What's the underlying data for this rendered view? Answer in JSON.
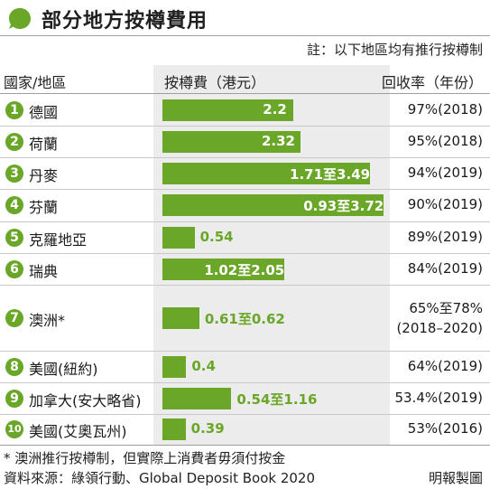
{
  "title": "部分地方按樽費用",
  "note": "註：以下地區均有推行按樽制",
  "headers": {
    "region": "國家/地區",
    "fee": "按樽費（港元）",
    "rate": "回收率（年份）"
  },
  "colors": {
    "bar": "#6aa628",
    "band": "#ececec"
  },
  "footnote": "* 澳洲推行按樽制，但實際上消費者毋須付按金",
  "source": "資料來源：綠領行動、Global Deposit Book 2020",
  "credit": "明報製圖",
  "chart_data": {
    "type": "bar",
    "orientation": "horizontal",
    "title": "部分地方按樽費用",
    "xlabel": "按樽費（港元）",
    "xlim": [
      0,
      3.72
    ],
    "grid": false,
    "rows": [
      {
        "rank": "1",
        "region": "德國",
        "min": 2.2,
        "max": 2.2,
        "label": "2.2",
        "rate": "97%(2018)"
      },
      {
        "rank": "2",
        "region": "荷蘭",
        "min": 2.32,
        "max": 2.32,
        "label": "2.32",
        "rate": "95%(2018)"
      },
      {
        "rank": "3",
        "region": "丹麥",
        "min": 1.71,
        "max": 3.49,
        "label": "1.71至3.49",
        "rate": "94%(2019)"
      },
      {
        "rank": "4",
        "region": "芬蘭",
        "min": 0.93,
        "max": 3.72,
        "label": "0.93至3.72",
        "rate": "90%(2019)"
      },
      {
        "rank": "5",
        "region": "克羅地亞",
        "min": 0.54,
        "max": 0.54,
        "label": "0.54",
        "rate": "89%(2019)"
      },
      {
        "rank": "6",
        "region": "瑞典",
        "min": 1.02,
        "max": 2.05,
        "label": "1.02至2.05",
        "rate": "84%(2019)"
      },
      {
        "rank": "7",
        "region": "澳洲*",
        "min": 0.61,
        "max": 0.62,
        "label": "0.61至0.62",
        "rate": "65%至78%",
        "rate_years": "(2018–2020)"
      },
      {
        "rank": "8",
        "region": "美國(紐約)",
        "min": 0.4,
        "max": 0.4,
        "label": "0.4",
        "rate": "64%(2019)"
      },
      {
        "rank": "9",
        "region": "加拿大(安大略省)",
        "min": 0.54,
        "max": 1.16,
        "label": "0.54至1.16",
        "rate": "53.4%(2019)"
      },
      {
        "rank": "10",
        "region": "美國(艾奧瓦州)",
        "min": 0.39,
        "max": 0.39,
        "label": "0.39",
        "rate": "53%(2016)"
      }
    ]
  }
}
